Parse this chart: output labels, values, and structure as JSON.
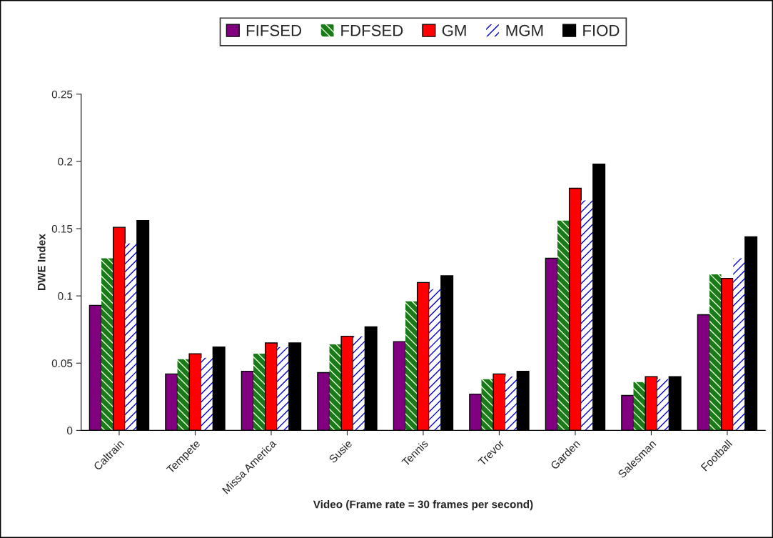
{
  "chart_data": {
    "type": "bar",
    "xlabel": "Video (Frame rate = 30 frames per second)",
    "ylabel": "DWE Index",
    "categories": [
      "Caltrain",
      "Tempete",
      "Missa America",
      "Susie",
      "Tennis",
      "Trevor",
      "Garden",
      "Salesman",
      "Football"
    ],
    "series": [
      {
        "name": "FIFSED",
        "color": "#800080",
        "values": [
          0.093,
          0.042,
          0.044,
          0.043,
          0.066,
          0.027,
          0.128,
          0.026,
          0.086
        ]
      },
      {
        "name": "FDFSED",
        "color": "#1a7a1a",
        "values": [
          0.128,
          0.053,
          0.057,
          0.064,
          0.096,
          0.038,
          0.156,
          0.036,
          0.116
        ]
      },
      {
        "name": "GM",
        "color": "#ff0000",
        "values": [
          0.151,
          0.057,
          0.065,
          0.07,
          0.11,
          0.042,
          0.18,
          0.04,
          0.113
        ]
      },
      {
        "name": "MGM",
        "color": "#0000cc",
        "values": [
          0.139,
          0.054,
          0.062,
          0.07,
          0.105,
          0.04,
          0.171,
          0.038,
          0.128
        ]
      },
      {
        "name": "FIOD",
        "color": "#000000",
        "values": [
          0.156,
          0.062,
          0.065,
          0.077,
          0.115,
          0.044,
          0.198,
          0.04,
          0.144
        ]
      }
    ],
    "ylim": [
      0,
      0.25
    ],
    "yticks": [
      0,
      0.05,
      0.1,
      0.15,
      0.2,
      0.25
    ],
    "grid": false,
    "legend": "top"
  }
}
